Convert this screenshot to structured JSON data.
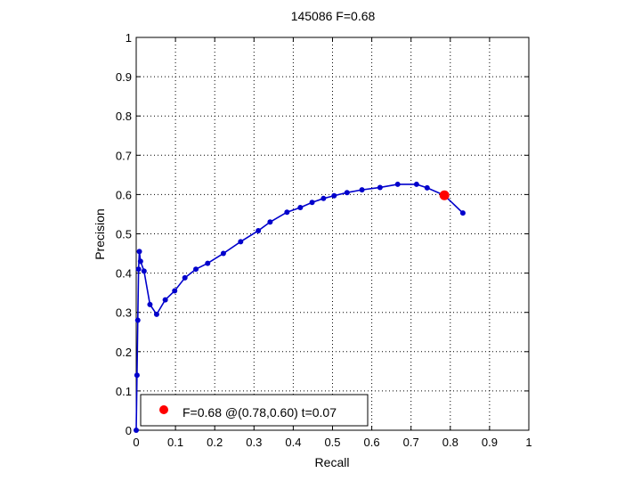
{
  "chart_data": {
    "type": "line",
    "title": "145086 F=0.68",
    "xlabel": "Recall",
    "ylabel": "Precision",
    "xlim": [
      0,
      1
    ],
    "ylim": [
      0,
      1
    ],
    "xticks": [
      "0",
      "0.1",
      "0.2",
      "0.3",
      "0.4",
      "0.5",
      "0.6",
      "0.7",
      "0.8",
      "0.9",
      "1"
    ],
    "yticks": [
      "0",
      "0.1",
      "0.2",
      "0.3",
      "0.4",
      "0.5",
      "0.6",
      "0.7",
      "0.8",
      "0.9",
      "1"
    ],
    "grid": true,
    "series": [
      {
        "color": "#0000cc",
        "marker": "dot",
        "x": [
          0.0,
          0.002,
          0.004,
          0.006,
          0.008,
          0.011,
          0.02,
          0.035,
          0.052,
          0.074,
          0.098,
          0.124,
          0.152,
          0.182,
          0.222,
          0.266,
          0.311,
          0.341,
          0.384,
          0.418,
          0.448,
          0.477,
          0.504,
          0.537,
          0.575,
          0.621,
          0.666,
          0.714,
          0.741,
          0.785,
          0.832
        ],
        "y": [
          0.0,
          0.14,
          0.28,
          0.41,
          0.455,
          0.43,
          0.405,
          0.32,
          0.295,
          0.332,
          0.355,
          0.388,
          0.41,
          0.425,
          0.45,
          0.48,
          0.508,
          0.53,
          0.555,
          0.567,
          0.58,
          0.59,
          0.597,
          0.605,
          0.612,
          0.618,
          0.626,
          0.626,
          0.617,
          0.598,
          0.553
        ]
      }
    ],
    "best_point": {
      "x": 0.785,
      "y": 0.598,
      "color": "#ff0000"
    },
    "legend": {
      "text": "F=0.68 @(0.78,0.60) t=0.07",
      "position": "bottom-left",
      "marker_color": "#ff0000"
    }
  }
}
